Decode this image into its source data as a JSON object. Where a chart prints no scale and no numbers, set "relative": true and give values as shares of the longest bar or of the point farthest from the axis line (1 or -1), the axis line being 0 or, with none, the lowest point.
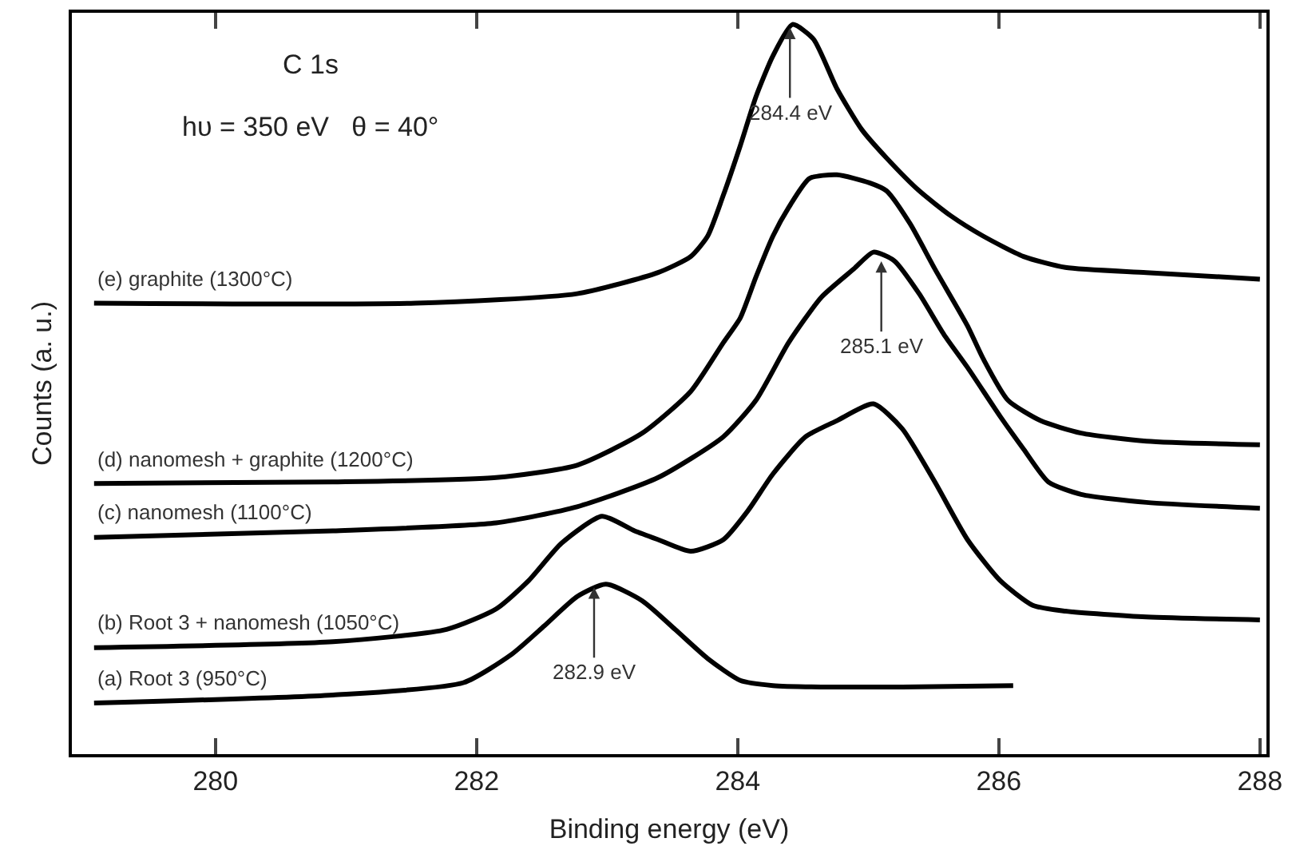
{
  "chart_data": {
    "type": "line",
    "relative": true,
    "xlabel": "Binding energy (eV)",
    "ylabel": "Counts (a. u.)",
    "xlim": [
      278.9,
      288.05
    ],
    "xticks": [
      280,
      282,
      284,
      286,
      288
    ],
    "legend": false,
    "marker": "none",
    "line_style": "solid",
    "annotations": [
      "C 1s",
      "hυ = 350 eV   θ = 40°",
      {
        "text": "284.4 eV",
        "x": 284.4,
        "y": 1.0
      },
      {
        "text": "285.1 eV",
        "x": 285.1,
        "y": 0.68
      },
      {
        "text": "282.9 eV",
        "x": 282.9,
        "y": 0.233
      }
    ],
    "series": [
      {
        "name": "(e) graphite (1300°C)",
        "color": "#000000",
        "x": [
          279.07,
          281.53,
          282.77,
          283.39,
          283.64,
          283.77,
          283.89,
          284.02,
          284.14,
          284.27,
          284.42,
          284.58,
          284.76,
          284.95,
          285.14,
          285.39,
          285.63,
          285.88,
          286.19,
          286.51,
          287.13,
          288.0
        ],
        "values": [
          0.618,
          0.618,
          0.631,
          0.66,
          0.682,
          0.71,
          0.766,
          0.834,
          0.901,
          0.957,
          1.0,
          0.98,
          0.912,
          0.856,
          0.817,
          0.772,
          0.738,
          0.71,
          0.682,
          0.667,
          0.66,
          0.651
        ]
      },
      {
        "name": "(d) nanomesh + graphite (1200°C)",
        "color": "#000000",
        "x": [
          279.07,
          280.9,
          282.15,
          282.77,
          283.27,
          283.64,
          283.89,
          284.02,
          284.14,
          284.27,
          284.39,
          284.55,
          284.76,
          285.01,
          285.14,
          285.32,
          285.51,
          285.76,
          285.88,
          286.07,
          286.32,
          286.63,
          287.13,
          288.0
        ],
        "values": [
          0.371,
          0.373,
          0.379,
          0.396,
          0.44,
          0.497,
          0.564,
          0.598,
          0.654,
          0.71,
          0.749,
          0.789,
          0.794,
          0.783,
          0.772,
          0.727,
          0.665,
          0.587,
          0.542,
          0.485,
          0.457,
          0.44,
          0.429,
          0.424
        ]
      },
      {
        "name": "(c) nanomesh (1100°C)",
        "color": "#000000",
        "x": [
          279.07,
          280.9,
          282.15,
          282.77,
          283.39,
          283.89,
          284.14,
          284.39,
          284.64,
          284.89,
          285.04,
          285.2,
          285.39,
          285.58,
          285.76,
          286.01,
          286.19,
          286.38,
          286.63,
          287.13,
          288.0
        ],
        "values": [
          0.297,
          0.306,
          0.317,
          0.339,
          0.379,
          0.435,
          0.485,
          0.564,
          0.626,
          0.665,
          0.688,
          0.676,
          0.631,
          0.575,
          0.53,
          0.463,
          0.418,
          0.373,
          0.356,
          0.345,
          0.337
        ]
      },
      {
        "name": "(b) Root 3 + nanomesh (1050°C)",
        "color": "#000000",
        "x": [
          279.07,
          280.9,
          281.77,
          282.15,
          282.4,
          282.65,
          282.96,
          283.21,
          283.39,
          283.64,
          283.89,
          284.08,
          284.27,
          284.52,
          284.76,
          285.04,
          285.26,
          285.51,
          285.76,
          286.01,
          286.26,
          286.51,
          287.13,
          288.0
        ],
        "values": [
          0.146,
          0.154,
          0.171,
          0.199,
          0.238,
          0.289,
          0.326,
          0.306,
          0.294,
          0.278,
          0.294,
          0.334,
          0.384,
          0.435,
          0.457,
          0.48,
          0.446,
          0.373,
          0.294,
          0.238,
          0.204,
          0.196,
          0.188,
          0.184
        ]
      },
      {
        "name": "(a) Root 3 (950°C)",
        "color": "#000000",
        "x": [
          279.07,
          280.9,
          281.9,
          282.27,
          282.52,
          282.77,
          282.99,
          283.27,
          283.52,
          283.77,
          284.02,
          284.27,
          284.64,
          285.26,
          286.11
        ],
        "values": [
          0.07,
          0.081,
          0.098,
          0.137,
          0.176,
          0.216,
          0.233,
          0.21,
          0.171,
          0.131,
          0.101,
          0.094,
          0.092,
          0.092,
          0.094
        ]
      }
    ]
  }
}
